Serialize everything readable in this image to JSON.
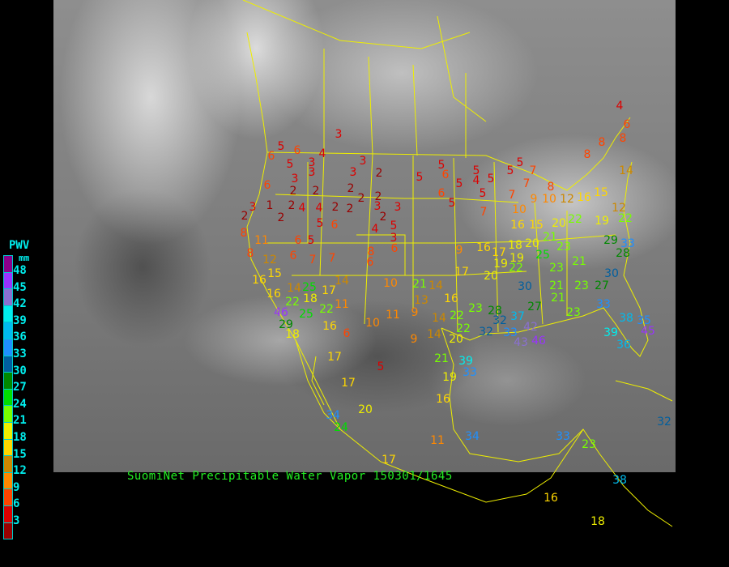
{
  "caption": "SuomiNet Precipitable Water Vapor 150301/1645",
  "legend": {
    "title": "PWV",
    "unit": "mm",
    "labels": [
      "48",
      "45",
      "42",
      "39",
      "36",
      "33",
      "30",
      "27",
      "24",
      "21",
      "18",
      "15",
      "12",
      "9",
      "6",
      "3"
    ],
    "colors": [
      "#8b008b",
      "#9933ff",
      "#8a70d0",
      "#00eeee",
      "#00bbee",
      "#1e90ff",
      "#005f9f",
      "#008800",
      "#00dd00",
      "#77ff00",
      "#eeee00",
      "#ffd700",
      "#cc8800",
      "#ff8800",
      "#ff4400",
      "#dd0000",
      "#990000"
    ]
  },
  "map": {
    "border_color": "#eeee00",
    "background": "satellite-infrared-grayscale"
  },
  "stations": [
    3,
    6,
    6,
    5,
    4,
    5,
    3,
    3,
    3,
    3,
    2,
    3,
    2,
    2,
    6,
    3,
    2,
    1,
    2,
    2,
    4,
    4,
    2,
    2,
    2,
    2,
    2,
    3,
    3,
    2,
    4,
    5,
    3,
    5,
    6,
    5,
    6,
    6,
    7,
    7,
    11,
    12,
    8,
    8,
    15,
    16,
    16,
    14,
    18,
    17,
    14,
    11,
    10,
    8,
    6,
    6,
    5,
    5,
    6,
    6,
    5,
    5,
    4,
    5,
    5,
    5,
    5,
    7,
    7,
    7,
    9,
    8,
    10,
    12,
    16,
    15,
    12,
    14,
    8,
    8,
    8,
    6,
    4,
    5,
    7,
    10,
    16,
    15,
    20,
    22,
    19,
    22,
    16,
    9,
    17,
    18,
    19,
    20,
    21,
    25,
    23,
    19,
    22,
    20,
    17,
    23,
    21,
    29,
    33,
    28,
    30,
    30,
    21,
    23,
    27,
    21,
    23,
    33,
    38,
    39,
    45,
    36,
    35,
    27,
    37,
    32,
    32,
    23,
    22,
    16,
    14,
    21,
    13,
    9,
    11,
    10,
    14,
    14,
    9,
    20,
    22,
    28,
    33,
    42,
    46,
    43,
    21,
    39,
    33,
    19,
    5,
    16,
    17,
    17,
    20,
    34,
    24,
    11,
    34,
    33,
    23,
    38,
    16,
    18,
    32,
    46,
    29,
    25,
    22,
    16,
    6,
    18,
    22,
    25,
    17
  ]
}
